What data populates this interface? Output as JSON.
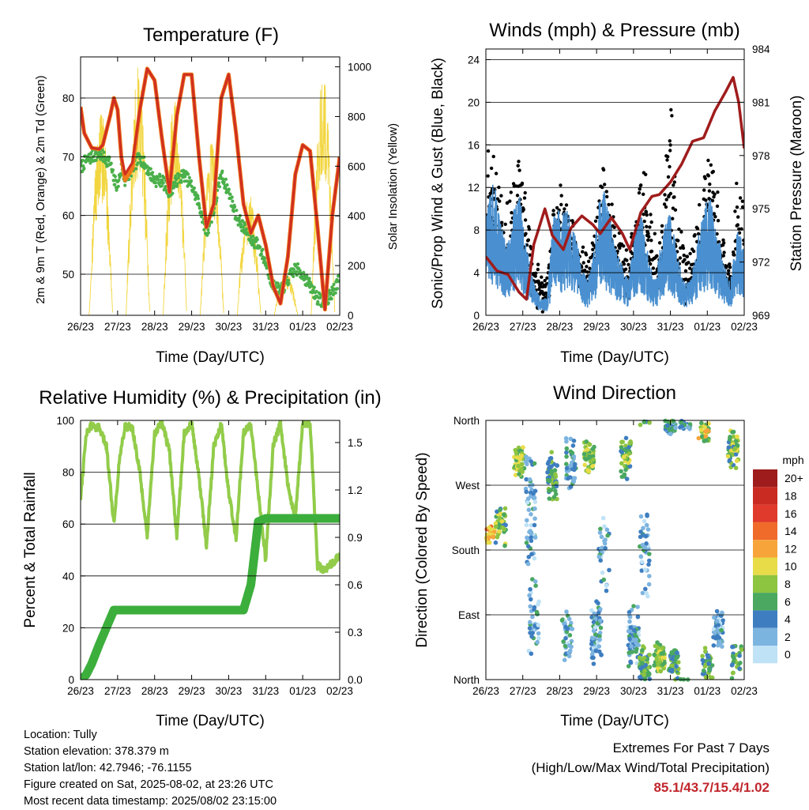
{
  "x_ticks": [
    "26/23",
    "27/23",
    "28/23",
    "29/23",
    "30/23",
    "31/23",
    "01/23",
    "02/23"
  ],
  "colors": {
    "temp_9m": "#d03020",
    "temp_2m": "#ef7a1a",
    "dewpoint": "#4ab04a",
    "solar": "#f2d640",
    "gust": "#000000",
    "wind": "#4a90d0",
    "pressure": "#a01c1c",
    "rh": "#92cc4a",
    "rain": "#3cae3c",
    "extremes_text": "#c0262c"
  },
  "chart_data": [
    {
      "type": "line",
      "title": "Temperature (F)",
      "xlabel": "Time (Day/UTC)",
      "ylabel": "2m & 9m T (Red, Orange) & 2m Td (Green)",
      "ylabel_right": "Solar Insolation (Yellow)",
      "ylim": [
        43,
        87
      ],
      "y_ticks": [
        50,
        60,
        70,
        80
      ],
      "ylim_right": [
        0,
        1040
      ],
      "y_ticks_right": [
        0,
        200,
        400,
        600,
        800,
        1000
      ],
      "x": [
        0,
        0.1,
        0.3,
        0.5,
        0.6,
        0.8,
        0.9,
        1.0,
        1.1,
        1.2,
        1.4,
        1.6,
        1.8,
        2.0,
        2.2,
        2.4,
        2.6,
        2.8,
        3.0,
        3.2,
        3.4,
        3.6,
        3.8,
        4.0,
        4.2,
        4.4,
        4.6,
        4.8,
        5.0,
        5.2,
        5.4,
        5.6,
        5.8,
        6.0,
        6.2,
        6.4,
        6.6,
        6.8,
        7.0
      ],
      "series": [
        {
          "name": "T 9m",
          "values": [
            78.5,
            74,
            71.5,
            71.3,
            72,
            77,
            80,
            78,
            70,
            67,
            69,
            78,
            85,
            83,
            73,
            64,
            77,
            84,
            84,
            70,
            58,
            62,
            80,
            84,
            74,
            62,
            57,
            60,
            55,
            48,
            45,
            53,
            67,
            72,
            71,
            58,
            44,
            60,
            70
          ]
        },
        {
          "name": "T 2m",
          "values": [
            78.5,
            74,
            71.5,
            71.3,
            72,
            77,
            80,
            78,
            70,
            66,
            68,
            78,
            85,
            83,
            73,
            64,
            77,
            84,
            84,
            70,
            58,
            62,
            80,
            84,
            74,
            62,
            57,
            60,
            55,
            48,
            45,
            53,
            67,
            72,
            71,
            58,
            44,
            60,
            70
          ]
        },
        {
          "name": "Td 2m",
          "values": [
            68,
            69,
            70,
            70.5,
            70,
            69,
            66,
            65,
            68,
            66,
            68,
            70,
            68,
            66,
            66,
            64,
            66,
            67,
            65,
            62,
            57,
            61,
            67,
            64,
            60,
            58,
            56,
            55,
            52,
            48,
            47,
            49,
            51,
            50,
            48,
            46,
            45,
            47,
            49
          ]
        }
      ],
      "solar_peaks": [
        {
          "day": 0.55,
          "peak": 830
        },
        {
          "day": 1.55,
          "peak": 1000
        },
        {
          "day": 2.55,
          "peak": 900
        },
        {
          "day": 3.55,
          "peak": 700
        },
        {
          "day": 4.55,
          "peak": 500
        },
        {
          "day": 5.55,
          "peak": 180
        },
        {
          "day": 6.55,
          "peak": 1000
        },
        {
          "day": 7.55,
          "peak": 850
        }
      ]
    },
    {
      "type": "line",
      "title": "Winds (mph) & Pressure (mb)",
      "xlabel": "Time (Day/UTC)",
      "ylabel": "Sonic/Prop Wind & Gust (Blue, Black)",
      "ylabel_right": "Station Pressure (Maroon)",
      "ylim": [
        0,
        25
      ],
      "y_ticks": [
        0,
        4,
        8,
        12,
        16,
        20,
        24
      ],
      "ylim_right": [
        969,
        984
      ],
      "y_ticks_right": [
        969,
        972,
        975,
        978,
        981,
        984
      ],
      "wind_mean": [
        6,
        8,
        6,
        4,
        6,
        7,
        4,
        2,
        1,
        1,
        6,
        6,
        6,
        5,
        3,
        2,
        4,
        8,
        6,
        4,
        3,
        2,
        5,
        6,
        3,
        2,
        5,
        6,
        4,
        2,
        2,
        4,
        6,
        7,
        5,
        3,
        2,
        5,
        4
      ],
      "gust_peaks": [
        17,
        15,
        12,
        10,
        13,
        15,
        11,
        4,
        4,
        4,
        10,
        13,
        11,
        8,
        6,
        5,
        8,
        14,
        12,
        9,
        7,
        6,
        10,
        15,
        11,
        6,
        8,
        23,
        12,
        6,
        5,
        8,
        12,
        17,
        11,
        7,
        4,
        13,
        10
      ],
      "pressure": {
        "x": [
          0,
          0.3,
          0.6,
          0.9,
          1.1,
          1.3,
          1.6,
          1.8,
          2.1,
          2.3,
          2.6,
          2.9,
          3.1,
          3.4,
          3.7,
          3.9,
          4.2,
          4.5,
          4.7,
          5.0,
          5.3,
          5.6,
          5.9,
          6.2,
          6.5,
          6.7,
          6.85,
          7.0
        ],
        "y": [
          972.3,
          971.5,
          971.3,
          970.3,
          969.9,
          973,
          975,
          973.5,
          972.7,
          973.9,
          974.6,
          974.1,
          973.6,
          974.5,
          973.6,
          972.7,
          974.8,
          975.7,
          975.8,
          976.5,
          977.5,
          978.8,
          979,
          980.5,
          981.6,
          982.4,
          981,
          978.4
        ]
      }
    },
    {
      "type": "line",
      "title": "Relative Humidity (%) & Precipitation (in)",
      "xlabel": "Time (Day/UTC)",
      "ylabel": "Percent & Total Rainfall",
      "ylim": [
        0,
        100
      ],
      "y_ticks": [
        0,
        20,
        40,
        60,
        80,
        100
      ],
      "ylim_right": [
        0,
        1.64
      ],
      "y_ticks_right": [
        "0.0",
        "0.3",
        "0.6",
        "0.9",
        "1.2",
        "1.5"
      ],
      "x": [
        0,
        0.15,
        0.3,
        0.5,
        0.7,
        0.9,
        1.05,
        1.2,
        1.4,
        1.6,
        1.8,
        2.0,
        2.2,
        2.4,
        2.6,
        2.8,
        3.0,
        3.2,
        3.4,
        3.6,
        3.8,
        4.0,
        4.2,
        4.4,
        4.6,
        4.8,
        5.0,
        5.2,
        5.4,
        5.6,
        5.8,
        6.0,
        6.2,
        6.4,
        6.6,
        6.8,
        7.0
      ],
      "series": [
        {
          "name": "RH",
          "values": [
            70,
            95,
            98,
            97,
            90,
            60,
            85,
            98,
            97,
            80,
            55,
            95,
            99,
            88,
            55,
            95,
            99,
            78,
            52,
            90,
            99,
            72,
            55,
            95,
            99,
            72,
            46,
            90,
            99,
            75,
            62,
            99,
            99,
            44,
            42,
            45,
            48
          ]
        },
        {
          "name": "Precip",
          "values": [
            0,
            0.03,
            0.1,
            0.22,
            0.33,
            0.44,
            0.44,
            0.44,
            0.44,
            0.44,
            0.44,
            0.44,
            0.44,
            0.44,
            0.44,
            0.44,
            0.44,
            0.44,
            0.44,
            0.44,
            0.44,
            0.44,
            0.44,
            0.44,
            0.6,
            1.0,
            1.02,
            1.02,
            1.02,
            1.02,
            1.02,
            1.02,
            1.02,
            1.02,
            1.02,
            1.02,
            1.02
          ]
        }
      ]
    },
    {
      "type": "scatter",
      "title": "Wind Direction",
      "xlabel": "Time (Day/UTC)",
      "ylabel": "Direction (Colored By Speed)",
      "y_categories": [
        "North",
        "East",
        "South",
        "West",
        "North"
      ],
      "legend_title": "mph",
      "legend": [
        "20+",
        "18",
        "16",
        "14",
        "12",
        "10",
        "8",
        "6",
        "4",
        "2",
        "0"
      ],
      "legend_colors": [
        "#9e1c1c",
        "#c92a22",
        "#e03a2c",
        "#f06a2a",
        "#f7a43a",
        "#e8dc48",
        "#8dc440",
        "#4aa860",
        "#3e7ec0",
        "#7cb4e0",
        "#bfe2f6"
      ],
      "clusters": [
        {
          "x": 0.1,
          "dir": 200,
          "spread": 15,
          "n": 30,
          "speed": 12
        },
        {
          "x": 0.4,
          "dir": 215,
          "spread": 30,
          "n": 40,
          "speed": 7
        },
        {
          "x": 0.9,
          "dir": 300,
          "spread": 25,
          "n": 50,
          "speed": 8
        },
        {
          "x": 1.2,
          "dir": 240,
          "spread": 90,
          "n": 60,
          "speed": 3
        },
        {
          "x": 1.3,
          "dir": 90,
          "spread": 60,
          "n": 40,
          "speed": 3
        },
        {
          "x": 1.8,
          "dir": 280,
          "spread": 40,
          "n": 60,
          "speed": 6
        },
        {
          "x": 2.2,
          "dir": 60,
          "spread": 40,
          "n": 40,
          "speed": 3
        },
        {
          "x": 2.3,
          "dir": 300,
          "spread": 40,
          "n": 40,
          "speed": 4
        },
        {
          "x": 2.8,
          "dir": 310,
          "spread": 25,
          "n": 60,
          "speed": 8
        },
        {
          "x": 3.0,
          "dir": 60,
          "spread": 50,
          "n": 60,
          "speed": 3
        },
        {
          "x": 3.2,
          "dir": 180,
          "spread": 60,
          "n": 30,
          "speed": 3
        },
        {
          "x": 3.8,
          "dir": 310,
          "spread": 35,
          "n": 50,
          "speed": 7
        },
        {
          "x": 4.0,
          "dir": 60,
          "spread": 50,
          "n": 60,
          "speed": 3
        },
        {
          "x": 4.3,
          "dir": 20,
          "spread": 30,
          "n": 60,
          "speed": 6
        },
        {
          "x": 4.3,
          "dir": 170,
          "spread": 70,
          "n": 40,
          "speed": 3
        },
        {
          "x": 4.7,
          "dir": 30,
          "spread": 25,
          "n": 70,
          "speed": 8
        },
        {
          "x": 5.0,
          "dir": 350,
          "spread": 10,
          "n": 40,
          "speed": 4
        },
        {
          "x": 5.1,
          "dir": 20,
          "spread": 25,
          "n": 50,
          "speed": 6
        },
        {
          "x": 5.4,
          "dir": 355,
          "spread": 8,
          "n": 30,
          "speed": 3
        },
        {
          "x": 5.9,
          "dir": 345,
          "spread": 15,
          "n": 30,
          "speed": 9
        },
        {
          "x": 6.0,
          "dir": 20,
          "spread": 25,
          "n": 40,
          "speed": 6
        },
        {
          "x": 6.3,
          "dir": 70,
          "spread": 30,
          "n": 60,
          "speed": 3
        },
        {
          "x": 6.7,
          "dir": 320,
          "spread": 30,
          "n": 60,
          "speed": 7
        },
        {
          "x": 6.8,
          "dir": 30,
          "spread": 30,
          "n": 30,
          "speed": 6
        }
      ]
    }
  ],
  "info": {
    "location": "Location: Tully",
    "elevation": "Station elevation: 378.379 m",
    "latlon": "Station lat/lon: 42.7946; -76.1155",
    "created": "Figure created on Sat, 2025-08-02, at 23:26 UTC",
    "recent": "Most recent data timestamp: 2025/08/02 23:15:00"
  },
  "extremes": {
    "title": "Extremes For Past 7 Days",
    "subtitle": "(High/Low/Max Wind/Total Precipitation)",
    "values": "85.1/43.7/15.4/1.02"
  }
}
